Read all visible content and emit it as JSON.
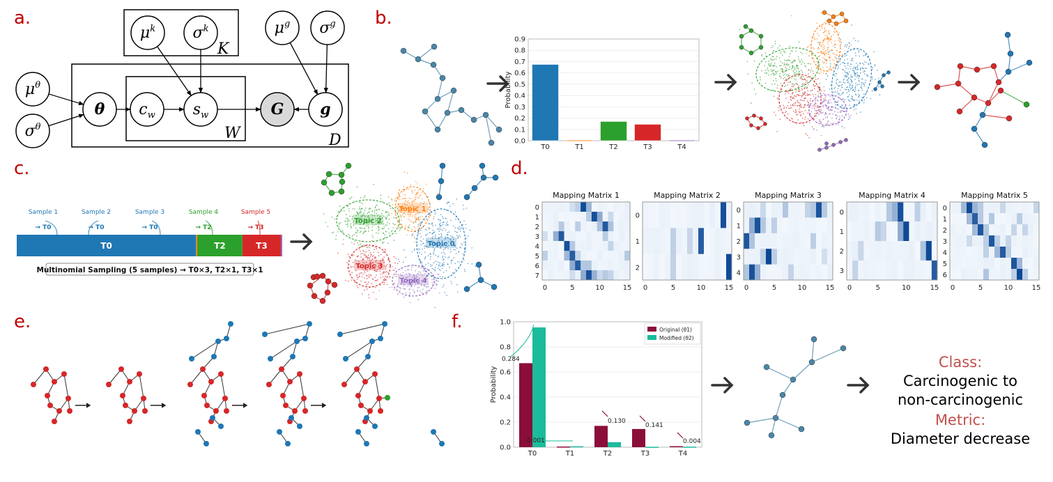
{
  "panels": {
    "a": "a.",
    "b": "b.",
    "c": "c.",
    "d": "d.",
    "e": "e.",
    "f": "f."
  },
  "graphical_model": {
    "nodes": {
      "mu_k": {
        "base": "μ",
        "sup": "k"
      },
      "sigma_k": {
        "base": "σ",
        "sup": "k"
      },
      "mu_g": {
        "base": "μ",
        "sup": "g"
      },
      "sigma_g": {
        "base": "σ",
        "sup": "g"
      },
      "mu_theta": {
        "base": "μ",
        "sup": "θ"
      },
      "sigma_theta": {
        "base": "σ",
        "sup": "θ"
      },
      "theta": {
        "base": "θ"
      },
      "c_w": {
        "base": "c",
        "sub": "w"
      },
      "s_w": {
        "base": "s",
        "sub": "w"
      },
      "G": {
        "base": "G"
      },
      "g": {
        "base": "g"
      }
    },
    "plates": {
      "K": "K",
      "W": "W",
      "D": "D"
    },
    "observed_fill": "#d9d9d9"
  },
  "topic_colors": [
    "#1f77b4",
    "#ff7f0e",
    "#2ca02c",
    "#d62728",
    "#9467bd"
  ],
  "topic_labels": [
    "Topic 0",
    "Topic 1",
    "Topic 2",
    "Topic 3",
    "Topic 4"
  ],
  "sampling": {
    "segments": [
      {
        "label": "T0",
        "value": 0.675
      },
      {
        "label": "",
        "value": 0.005
      },
      {
        "label": "T2",
        "value": 0.17
      },
      {
        "label": "T3",
        "value": 0.145
      },
      {
        "label": "",
        "value": 0.005
      }
    ],
    "samples": [
      {
        "name": "Sample 1",
        "result": "→ T0",
        "topic": 0
      },
      {
        "name": "Sample 2",
        "result": "→ T0",
        "topic": 0
      },
      {
        "name": "Sample 3",
        "result": "→ T0",
        "topic": 0
      },
      {
        "name": "Sample 4",
        "result": "→ T2",
        "topic": 2
      },
      {
        "name": "Sample 5",
        "result": "→ T3",
        "topic": 3
      }
    ],
    "caption": "Multinomial Sampling (5 samples) → T0×3, T2×1, T3×1"
  },
  "result": {
    "class_label": "Class:",
    "class_value_1": "Carcinogenic to",
    "class_value_2": "non-carcinogenic",
    "metric_label": "Metric:",
    "metric_value": "Diameter decrease",
    "label_color": "#c0504d"
  },
  "chart_data": [
    {
      "id": "b",
      "type": "bar",
      "categories": [
        "T0",
        "T1",
        "T2",
        "T3",
        "T4"
      ],
      "values": [
        0.675,
        0.005,
        0.17,
        0.145,
        0.005
      ],
      "ylabel": "Probability",
      "ylim": [
        0,
        0.9
      ],
      "yticks": [
        "0.0",
        "0.1",
        "0.2",
        "0.3",
        "0.4",
        "0.5",
        "0.6",
        "0.7",
        "0.8",
        "0.9"
      ],
      "grid": true
    },
    {
      "id": "d",
      "type": "heatmap",
      "colormap": "Blues",
      "xticks": [
        "0",
        "5",
        "10",
        "15"
      ],
      "columns": 16,
      "matrices": [
        {
          "title": "Mapping Matrix 1",
          "rows": [
            "0",
            "1",
            "2",
            "3",
            "4",
            "5",
            "6",
            "7"
          ],
          "peak_columns": [
            7,
            9,
            11,
            3,
            4,
            5,
            6,
            8
          ]
        },
        {
          "title": "Mapping Matrix 2",
          "rows": [
            "0",
            "1",
            "2"
          ],
          "peak_columns": [
            14,
            10,
            15
          ]
        },
        {
          "title": "Mapping Matrix 3",
          "rows": [
            "0",
            "1",
            "2",
            "3",
            "4"
          ],
          "peak_columns": [
            13,
            2,
            0,
            4,
            1
          ]
        },
        {
          "title": "Mapping Matrix 4",
          "rows": [
            "0",
            "1",
            "2",
            "3"
          ],
          "peak_columns": [
            9,
            10,
            14,
            15
          ]
        },
        {
          "title": "Mapping Matrix 5",
          "rows": [
            "0",
            "1",
            "2",
            "3",
            "4",
            "5",
            "6"
          ],
          "peak_columns": [
            3,
            4,
            5,
            7,
            9,
            11,
            12
          ]
        }
      ]
    },
    {
      "id": "f",
      "type": "bar",
      "categories": [
        "T0",
        "T1",
        "T2",
        "T3",
        "T4"
      ],
      "series": [
        {
          "name": "Original (θ1)",
          "color": "#8b0e3a",
          "values": [
            0.67,
            0.005,
            0.17,
            0.145,
            0.008
          ]
        },
        {
          "name": "Modified (θ2)",
          "color": "#1abc9c",
          "values": [
            0.955,
            0.007,
            0.04,
            0.003,
            0.004
          ]
        }
      ],
      "annotations": [
        "0.284",
        "0.001",
        "0.130",
        "0.141",
        "0.004"
      ],
      "ylabel": "Probability",
      "ylim": [
        0,
        1.0
      ],
      "yticks": [
        "0.0",
        "0.2",
        "0.4",
        "0.6",
        "0.8",
        "1.0"
      ],
      "legend": "top-right",
      "grid": true
    }
  ]
}
